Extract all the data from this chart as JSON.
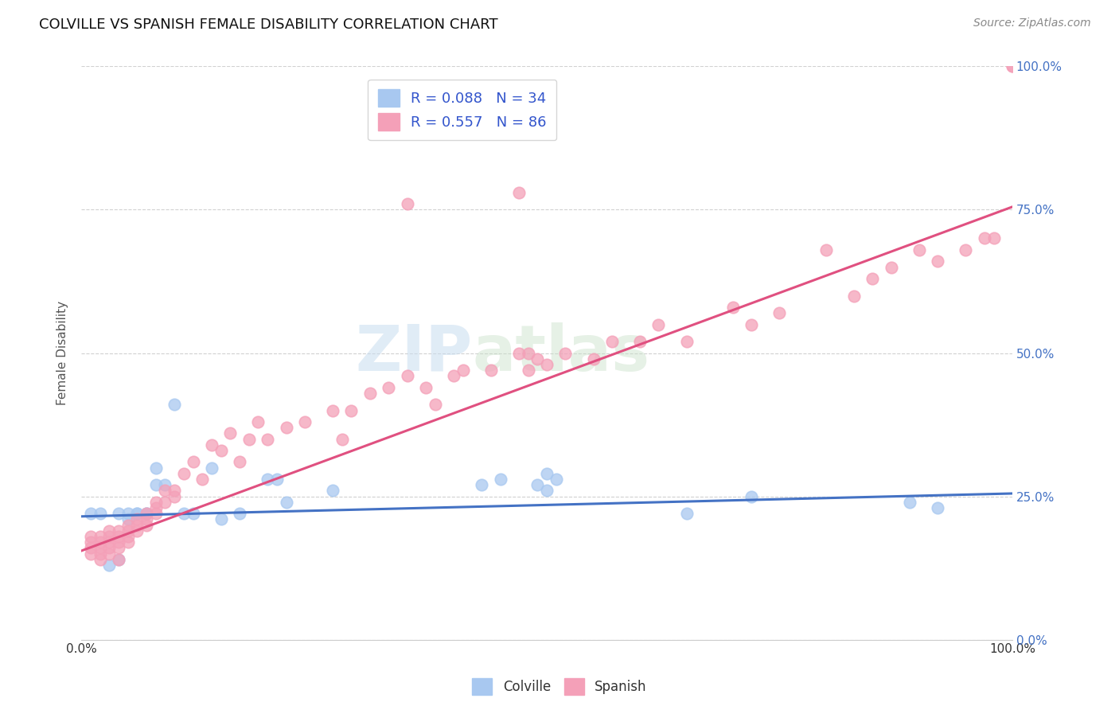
{
  "title": "COLVILLE VS SPANISH FEMALE DISABILITY CORRELATION CHART",
  "source": "Source: ZipAtlas.com",
  "ylabel": "Female Disability",
  "colville_R": 0.088,
  "colville_N": 34,
  "spanish_R": 0.557,
  "spanish_N": 86,
  "colville_color": "#a8c8f0",
  "spanish_color": "#f4a0b8",
  "colville_line_color": "#4472c4",
  "spanish_line_color": "#e05080",
  "legend_text_color": "#3355cc",
  "ytick_labels": [
    "0.0%",
    "25.0%",
    "50.0%",
    "75.0%",
    "100.0%"
  ],
  "ytick_values": [
    0.0,
    0.25,
    0.5,
    0.75,
    1.0
  ],
  "colville_x": [
    0.01,
    0.02,
    0.03,
    0.04,
    0.04,
    0.05,
    0.05,
    0.06,
    0.06,
    0.07,
    0.07,
    0.08,
    0.08,
    0.09,
    0.1,
    0.11,
    0.12,
    0.14,
    0.15,
    0.17,
    0.2,
    0.21,
    0.22,
    0.27,
    0.43,
    0.45,
    0.49,
    0.5,
    0.51,
    0.65,
    0.72,
    0.89,
    0.92,
    0.5
  ],
  "colville_y": [
    0.22,
    0.22,
    0.13,
    0.22,
    0.14,
    0.22,
    0.21,
    0.22,
    0.22,
    0.22,
    0.22,
    0.3,
    0.27,
    0.27,
    0.41,
    0.22,
    0.22,
    0.3,
    0.21,
    0.22,
    0.28,
    0.28,
    0.24,
    0.26,
    0.27,
    0.28,
    0.27,
    0.26,
    0.28,
    0.22,
    0.25,
    0.24,
    0.23,
    0.29
  ],
  "spanish_x": [
    0.01,
    0.01,
    0.01,
    0.01,
    0.02,
    0.02,
    0.02,
    0.02,
    0.02,
    0.03,
    0.03,
    0.03,
    0.03,
    0.03,
    0.04,
    0.04,
    0.04,
    0.04,
    0.04,
    0.05,
    0.05,
    0.05,
    0.05,
    0.06,
    0.06,
    0.06,
    0.07,
    0.07,
    0.07,
    0.08,
    0.08,
    0.08,
    0.09,
    0.09,
    0.1,
    0.1,
    0.11,
    0.12,
    0.13,
    0.14,
    0.15,
    0.16,
    0.17,
    0.18,
    0.19,
    0.2,
    0.22,
    0.24,
    0.27,
    0.28,
    0.29,
    0.31,
    0.33,
    0.35,
    0.37,
    0.38,
    0.4,
    0.41,
    0.44,
    0.47,
    0.48,
    0.49,
    0.5,
    0.52,
    0.55,
    0.57,
    0.6,
    0.62,
    0.65,
    0.7,
    0.72,
    0.75,
    0.8,
    0.83,
    0.85,
    0.87,
    0.9,
    0.92,
    0.95,
    0.97,
    0.98,
    1.0,
    1.0,
    0.47,
    0.35,
    0.48
  ],
  "spanish_y": [
    0.18,
    0.17,
    0.16,
    0.15,
    0.18,
    0.17,
    0.16,
    0.15,
    0.14,
    0.19,
    0.18,
    0.17,
    0.16,
    0.15,
    0.19,
    0.18,
    0.17,
    0.16,
    0.14,
    0.2,
    0.19,
    0.18,
    0.17,
    0.21,
    0.2,
    0.19,
    0.22,
    0.21,
    0.2,
    0.24,
    0.23,
    0.22,
    0.26,
    0.24,
    0.26,
    0.25,
    0.29,
    0.31,
    0.28,
    0.34,
    0.33,
    0.36,
    0.31,
    0.35,
    0.38,
    0.35,
    0.37,
    0.38,
    0.4,
    0.35,
    0.4,
    0.43,
    0.44,
    0.46,
    0.44,
    0.41,
    0.46,
    0.47,
    0.47,
    0.5,
    0.47,
    0.49,
    0.48,
    0.5,
    0.49,
    0.52,
    0.52,
    0.55,
    0.52,
    0.58,
    0.55,
    0.57,
    0.68,
    0.6,
    0.63,
    0.65,
    0.68,
    0.66,
    0.68,
    0.7,
    0.7,
    1.0,
    1.0,
    0.78,
    0.76,
    0.5
  ]
}
